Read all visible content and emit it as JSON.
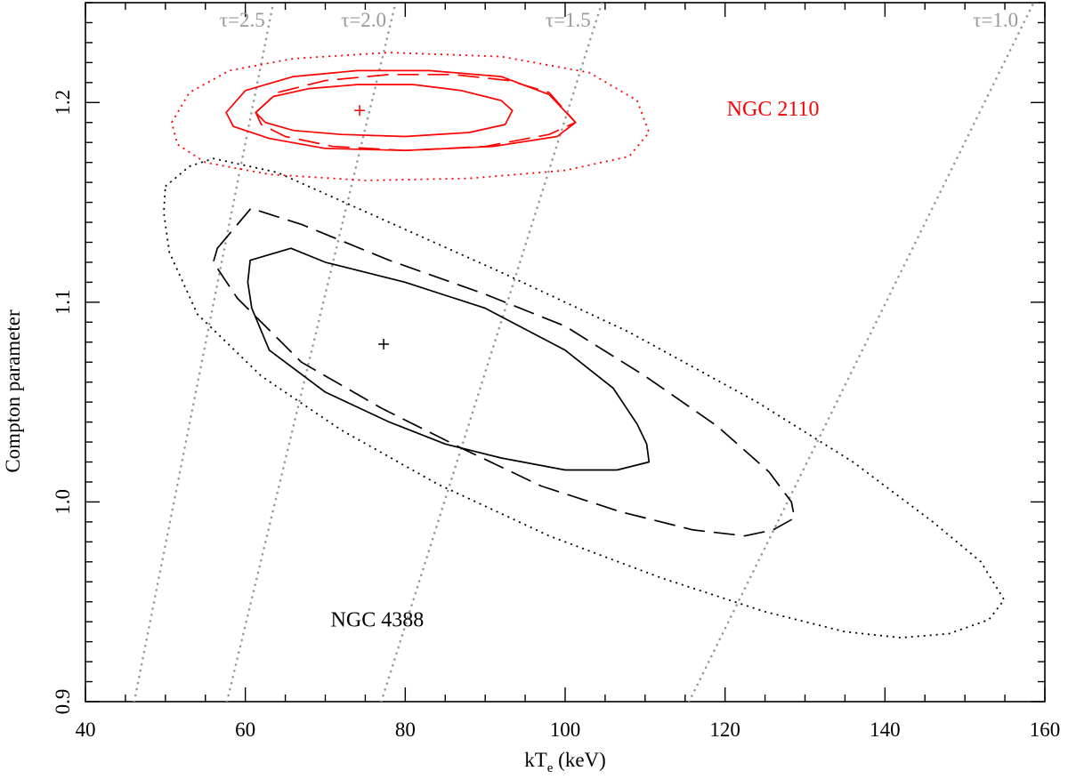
{
  "colors": {
    "ngc2110": "#ff0000",
    "ngc4388": "#000000",
    "tau_lines": "#999999",
    "tau_labels": "#9a9a9a",
    "axes": "#000000"
  },
  "chart_data": {
    "type": "contour",
    "xlabel_main": "kT",
    "xlabel_sub": "e",
    "xlabel_unit": " (keV)",
    "ylabel": "Compton parameter",
    "xlim": [
      40,
      160
    ],
    "ylim": [
      0.9,
      1.25
    ],
    "xticks": [
      "40",
      "60",
      "80",
      "100",
      "120",
      "140",
      "160"
    ],
    "yticks": [
      "0.9",
      "1.0",
      "1.1",
      "1.2"
    ],
    "tau_lines": [
      {
        "label": "τ=2.5",
        "points": [
          [
            46.1,
            0.9
          ],
          [
            63.5,
            1.25
          ]
        ]
      },
      {
        "label": "τ=2.0",
        "points": [
          [
            57.7,
            0.9
          ],
          [
            78.8,
            1.25
          ]
        ]
      },
      {
        "label": "τ=1.5",
        "points": [
          [
            77.0,
            0.9
          ],
          [
            104.6,
            1.25
          ]
        ]
      },
      {
        "label": "τ=1.0",
        "points": [
          [
            115.5,
            0.9
          ],
          [
            158.6,
            1.25
          ]
        ]
      }
    ],
    "sources": [
      {
        "name": "NGC 2110",
        "label_pos": [
          126,
          1.196
        ],
        "best_fit": [
          74.3,
          1.196
        ],
        "contours": [
          {
            "level": "inner",
            "style": "solid",
            "points": [
              [
                61.3,
                1.195
              ],
              [
                63.5,
                1.203
              ],
              [
                68,
                1.207
              ],
              [
                74,
                1.209
              ],
              [
                81,
                1.209
              ],
              [
                87,
                1.206
              ],
              [
                92,
                1.201
              ],
              [
                93.4,
                1.196
              ],
              [
                92.5,
                1.189
              ],
              [
                88,
                1.185
              ],
              [
                80,
                1.183
              ],
              [
                72,
                1.184
              ],
              [
                66,
                1.186
              ],
              [
                62.5,
                1.19
              ],
              [
                61.3,
                1.195
              ]
            ]
          },
          {
            "level": "middle",
            "style": "solid",
            "points": [
              [
                57.6,
                1.195
              ],
              [
                60,
                1.206
              ],
              [
                66,
                1.213
              ],
              [
                74,
                1.216
              ],
              [
                83,
                1.216
              ],
              [
                92,
                1.213
              ],
              [
                98,
                1.204
              ],
              [
                101.3,
                1.19
              ],
              [
                99,
                1.183
              ],
              [
                91,
                1.178
              ],
              [
                80,
                1.176
              ],
              [
                70,
                1.177
              ],
              [
                63,
                1.182
              ],
              [
                58.5,
                1.188
              ],
              [
                57.6,
                1.195
              ]
            ]
          },
          {
            "level": "outer-dashed",
            "style": "dashed",
            "points": [
              [
                61.3,
                1.195
              ],
              [
                64,
                1.205
              ],
              [
                70,
                1.211
              ],
              [
                78,
                1.214
              ],
              [
                86,
                1.214
              ],
              [
                93,
                1.211
              ],
              [
                98,
                1.205
              ],
              [
                101.3,
                1.19
              ],
              [
                98,
                1.184
              ],
              [
                90,
                1.178
              ],
              [
                80,
                1.176
              ],
              [
                71,
                1.178
              ],
              [
                65,
                1.183
              ],
              [
                62,
                1.189
              ],
              [
                61.3,
                1.195
              ]
            ]
          },
          {
            "level": "outer",
            "style": "dotted",
            "points": [
              [
                50.8,
                1.19
              ],
              [
                53,
                1.205
              ],
              [
                58,
                1.216
              ],
              [
                66,
                1.222
              ],
              [
                78,
                1.225
              ],
              [
                92,
                1.223
              ],
              [
                103,
                1.215
              ],
              [
                109,
                1.201
              ],
              [
                110.5,
                1.185
              ],
              [
                108,
                1.173
              ],
              [
                100,
                1.166
              ],
              [
                88,
                1.162
              ],
              [
                75,
                1.161
              ],
              [
                63,
                1.164
              ],
              [
                55,
                1.17
              ],
              [
                51.5,
                1.179
              ],
              [
                50.8,
                1.19
              ]
            ]
          }
        ]
      },
      {
        "name": "NGC 4388",
        "label_pos": [
          76.5,
          0.94
        ],
        "best_fit": [
          77.3,
          1.079
        ],
        "contours": [
          {
            "level": "inner",
            "style": "solid",
            "points": [
              [
                60.6,
                1.121
              ],
              [
                65.7,
                1.127
              ],
              [
                70,
                1.12
              ],
              [
                80,
                1.11
              ],
              [
                90,
                1.097
              ],
              [
                100,
                1.076
              ],
              [
                106,
                1.057
              ],
              [
                109,
                1.039
              ],
              [
                110.2,
                1.029
              ],
              [
                110.5,
                1.02
              ],
              [
                106.5,
                1.016
              ],
              [
                100,
                1.016
              ],
              [
                92,
                1.022
              ],
              [
                85,
                1.029
              ],
              [
                78,
                1.04
              ],
              [
                70,
                1.055
              ],
              [
                63,
                1.076
              ],
              [
                60.8,
                1.097
              ],
              [
                60.3,
                1.11
              ],
              [
                60.6,
                1.121
              ]
            ]
          },
          {
            "level": "middle",
            "style": "dashed",
            "points": [
              [
                56.5,
                1.127
              ],
              [
                60.7,
                1.147
              ],
              [
                67,
                1.139
              ],
              [
                78,
                1.121
              ],
              [
                90,
                1.104
              ],
              [
                100,
                1.088
              ],
              [
                110,
                1.063
              ],
              [
                119,
                1.038
              ],
              [
                125.5,
                1.015
              ],
              [
                128.3,
                1.0
              ],
              [
                128.7,
                0.992
              ],
              [
                126,
                0.986
              ],
              [
                122.5,
                0.983
              ],
              [
                116,
                0.986
              ],
              [
                107,
                0.995
              ],
              [
                97,
                1.008
              ],
              [
                87,
                1.027
              ],
              [
                77,
                1.047
              ],
              [
                67,
                1.07
              ],
              [
                59,
                1.102
              ],
              [
                56,
                1.12
              ],
              [
                56.5,
                1.127
              ]
            ]
          },
          {
            "level": "outer",
            "style": "dotted",
            "points": [
              [
                50.0,
                1.158
              ],
              [
                53,
                1.168
              ],
              [
                56,
                1.172
              ],
              [
                64,
                1.165
              ],
              [
                78,
                1.14
              ],
              [
                92,
                1.115
              ],
              [
                108,
                1.085
              ],
              [
                124,
                1.05
              ],
              [
                136,
                1.02
              ],
              [
                146,
                0.99
              ],
              [
                152,
                0.97
              ],
              [
                154.9,
                0.951
              ],
              [
                153,
                0.941
              ],
              [
                148,
                0.934
              ],
              [
                142,
                0.932
              ],
              [
                135,
                0.935
              ],
              [
                125,
                0.945
              ],
              [
                112,
                0.962
              ],
              [
                98,
                0.983
              ],
              [
                84,
                1.009
              ],
              [
                72,
                1.036
              ],
              [
                62,
                1.063
              ],
              [
                54,
                1.094
              ],
              [
                50.5,
                1.125
              ],
              [
                49.8,
                1.145
              ],
              [
                50.0,
                1.158
              ]
            ]
          }
        ]
      }
    ]
  }
}
